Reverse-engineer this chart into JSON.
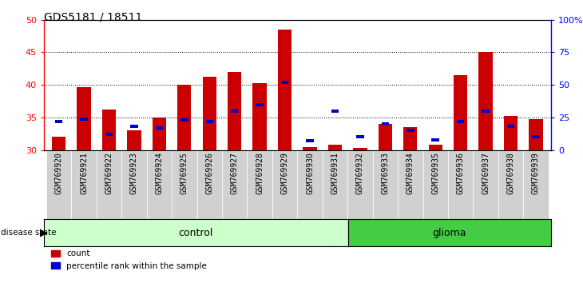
{
  "title": "GDS5181 / 18511",
  "samples": [
    "GSM769920",
    "GSM769921",
    "GSM769922",
    "GSM769923",
    "GSM769924",
    "GSM769925",
    "GSM769926",
    "GSM769927",
    "GSM769928",
    "GSM769929",
    "GSM769930",
    "GSM769931",
    "GSM769932",
    "GSM769933",
    "GSM769934",
    "GSM769935",
    "GSM769936",
    "GSM769937",
    "GSM769938",
    "GSM769939"
  ],
  "count_values": [
    32.0,
    39.7,
    36.2,
    33.0,
    35.0,
    40.0,
    41.3,
    42.0,
    40.3,
    48.5,
    30.5,
    30.8,
    30.3,
    34.0,
    33.5,
    30.8,
    41.5,
    45.0,
    35.2,
    34.8
  ],
  "pct_values": [
    22,
    24,
    12,
    18,
    17,
    23,
    22,
    30,
    35,
    52,
    7,
    30,
    10,
    20,
    15,
    8,
    22,
    30,
    18,
    10
  ],
  "group_control_count": 12,
  "ylim_left": [
    30,
    50
  ],
  "ylim_right": [
    0,
    100
  ],
  "yticks_left": [
    30,
    35,
    40,
    45,
    50
  ],
  "yticks_right": [
    0,
    25,
    50,
    75,
    100
  ],
  "yticklabels_right": [
    "0",
    "25",
    "50",
    "75",
    "100%"
  ],
  "bar_color": "#cc0000",
  "pct_color": "#0000cc",
  "xticklabel_bg": "#d0d0d0",
  "control_bg": "#ccffcc",
  "glioma_bg": "#44cc44",
  "bar_width": 0.55
}
